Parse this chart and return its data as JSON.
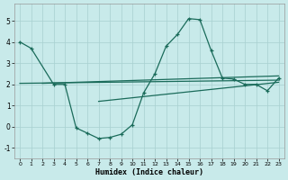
{
  "background_color": "#c8eaea",
  "grid_color": "#a8d0d0",
  "line_color": "#1a6b5a",
  "xlabel": "Humidex (Indice chaleur)",
  "main_x": [
    0,
    1,
    3,
    4,
    5,
    6,
    7,
    8,
    9,
    10,
    11,
    12,
    13,
    14,
    15,
    16,
    17,
    18,
    19,
    20,
    21,
    22,
    23
  ],
  "main_y": [
    4.0,
    3.7,
    2.0,
    2.0,
    -0.05,
    -0.3,
    -0.55,
    -0.5,
    -0.35,
    0.1,
    1.6,
    2.5,
    3.8,
    4.35,
    5.1,
    5.05,
    3.6,
    2.3,
    2.25,
    2.0,
    2.0,
    1.7,
    2.3
  ],
  "trend1_x": [
    0,
    23
  ],
  "trend1_y": [
    2.05,
    2.2
  ],
  "trend2_x": [
    2,
    23
  ],
  "trend2_y": [
    2.05,
    2.4
  ],
  "trend3_x": [
    7,
    23
  ],
  "trend3_y": [
    1.2,
    2.1
  ],
  "ylim": [
    -1.5,
    5.8
  ],
  "xlim": [
    -0.5,
    23.5
  ],
  "yticks": [
    -1,
    0,
    1,
    2,
    3,
    4,
    5
  ],
  "xticks": [
    0,
    1,
    2,
    3,
    4,
    5,
    6,
    7,
    8,
    9,
    10,
    11,
    12,
    13,
    14,
    15,
    16,
    17,
    18,
    19,
    20,
    21,
    22,
    23
  ]
}
